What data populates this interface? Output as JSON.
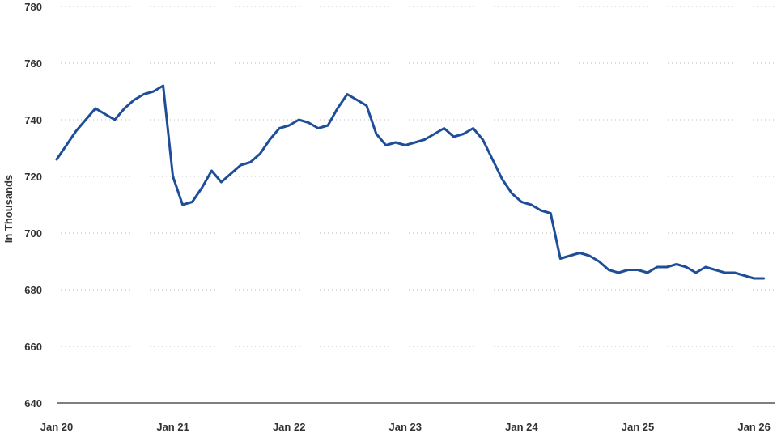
{
  "chart_data": {
    "type": "line",
    "title": "",
    "xlabel": "",
    "ylabel": "In Thousands",
    "ylim": [
      640,
      780
    ],
    "y_ticks": [
      640,
      660,
      680,
      700,
      720,
      740,
      760,
      780
    ],
    "x_ticks": [
      "Jan 20",
      "Jan 21",
      "Jan 22",
      "Jan 23",
      "Jan 24",
      "Jan 25",
      "Jan 26"
    ],
    "grid": "horizontal dotted",
    "colors": {
      "line": "#1f4e99",
      "grid": "#bbbbbb",
      "axis": "#333333"
    },
    "series": [
      {
        "x": [
          "2020-01",
          "2020-02",
          "2020-03",
          "2020-04",
          "2020-05",
          "2020-06",
          "2020-07",
          "2020-08",
          "2020-09",
          "2020-10",
          "2020-11",
          "2020-12",
          "2021-01",
          "2021-02",
          "2021-03",
          "2021-04",
          "2021-05",
          "2021-06",
          "2021-07",
          "2021-08",
          "2021-09",
          "2021-10",
          "2021-11",
          "2021-12",
          "2022-01",
          "2022-02",
          "2022-03",
          "2022-04",
          "2022-05",
          "2022-06",
          "2022-07",
          "2022-08",
          "2022-09",
          "2022-10",
          "2022-11",
          "2022-12",
          "2023-01",
          "2023-02",
          "2023-03",
          "2023-04",
          "2023-05",
          "2023-06",
          "2023-07",
          "2023-08",
          "2023-09",
          "2023-10",
          "2023-11",
          "2023-12",
          "2024-01",
          "2024-02",
          "2024-03",
          "2024-04",
          "2024-05",
          "2024-06",
          "2024-07",
          "2024-08",
          "2024-09",
          "2024-10",
          "2024-11",
          "2024-12",
          "2025-01",
          "2025-02",
          "2025-03",
          "2025-04",
          "2025-05",
          "2025-06",
          "2025-07",
          "2025-08",
          "2025-09",
          "2025-10",
          "2025-11",
          "2025-12",
          "2026-01",
          "2026-02"
        ],
        "values": [
          726,
          731,
          736,
          740,
          744,
          742,
          740,
          744,
          747,
          749,
          750,
          752,
          720,
          710,
          711,
          716,
          722,
          718,
          721,
          724,
          725,
          728,
          733,
          737,
          738,
          740,
          739,
          737,
          738,
          744,
          749,
          747,
          745,
          735,
          731,
          732,
          731,
          732,
          733,
          735,
          737,
          734,
          735,
          737,
          733,
          726,
          719,
          714,
          711,
          710,
          708,
          707,
          691,
          692,
          693,
          692,
          690,
          687,
          686,
          687,
          687,
          686,
          688,
          688,
          689,
          688,
          686,
          688,
          687,
          686,
          686,
          685,
          684,
          684
        ]
      }
    ]
  }
}
